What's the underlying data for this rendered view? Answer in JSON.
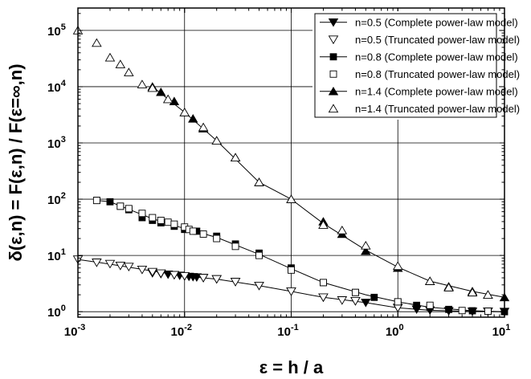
{
  "chart_data": {
    "type": "line",
    "x_scale": "log",
    "y_scale": "log",
    "xlim": [
      0.001,
      10
    ],
    "ylim": [
      0.8,
      250000
    ],
    "grid": true,
    "legend_position": "top-right",
    "xlabel": "ε = h / a",
    "ylabel": "δ(ε,n) = F(ε,n) / F(ε=∞,n)",
    "x_ticks": [
      {
        "base": "10",
        "exp": "-3",
        "value": 0.001
      },
      {
        "base": "10",
        "exp": "-2",
        "value": 0.01
      },
      {
        "base": "10",
        "exp": "-1",
        "value": 0.1
      },
      {
        "base": "10",
        "exp": "0",
        "value": 1
      },
      {
        "base": "10",
        "exp": "1",
        "value": 10
      }
    ],
    "y_ticks": [
      {
        "base": "10",
        "exp": "0",
        "value": 1
      },
      {
        "base": "10",
        "exp": "1",
        "value": 10
      },
      {
        "base": "10",
        "exp": "2",
        "value": 100
      },
      {
        "base": "10",
        "exp": "3",
        "value": 1000
      },
      {
        "base": "10",
        "exp": "4",
        "value": 10000
      },
      {
        "base": "10",
        "exp": "5",
        "value": 100000
      }
    ],
    "series": [
      {
        "name": "n=0.5 (Complete power-law model)",
        "marker": "triangle-down-filled",
        "x": [
          0.005,
          0.006,
          0.007,
          0.008,
          0.009,
          0.01,
          0.011,
          0.012,
          0.013,
          0.015,
          0.02,
          0.03,
          0.05,
          0.1,
          0.2,
          0.4,
          0.5,
          1,
          1.5,
          2,
          3,
          5,
          7,
          10
        ],
        "y": [
          4.85,
          4.7,
          4.6,
          4.5,
          4.4,
          4.3,
          4.2,
          4.15,
          4.1,
          4.0,
          3.8,
          3.4,
          2.9,
          2.3,
          1.8,
          1.55,
          1.45,
          1.17,
          1.1,
          1.06,
          1.03,
          1.01,
          1.01,
          1.0
        ]
      },
      {
        "name": "n=0.5 (Truncated power-law model)",
        "marker": "triangle-down-open",
        "x": [
          0.001,
          0.0015,
          0.002,
          0.0025,
          0.003,
          0.004,
          0.005,
          0.006,
          0.008,
          0.01,
          0.015,
          0.02,
          0.03,
          0.05,
          0.1,
          0.2,
          0.3,
          0.4,
          1,
          7
        ],
        "y": [
          8.5,
          7.5,
          7.1,
          6.6,
          6.3,
          5.6,
          5.1,
          4.8,
          4.5,
          4.3,
          4.0,
          3.8,
          3.4,
          2.9,
          2.3,
          1.8,
          1.6,
          1.55,
          1.18,
          1.01
        ]
      },
      {
        "name": "n=0.8 (Complete power-law model)",
        "marker": "square-filled",
        "x": [
          0.0015,
          0.002,
          0.0025,
          0.003,
          0.004,
          0.005,
          0.006,
          0.008,
          0.01,
          0.013,
          0.02,
          0.03,
          0.05,
          0.1,
          0.2,
          0.4,
          0.6,
          1,
          1.5,
          2,
          3,
          5,
          7,
          10
        ],
        "y": [
          95,
          90,
          75,
          65,
          47,
          42,
          38,
          33,
          29,
          27,
          22,
          16,
          11,
          6,
          3.3,
          2.2,
          1.8,
          1.5,
          1.3,
          1.2,
          1.1,
          1.04,
          1.02,
          1.0
        ]
      },
      {
        "name": "n=0.8 (Truncated power-law model)",
        "marker": "square-open",
        "x": [
          0.0015,
          0.0025,
          0.003,
          0.004,
          0.005,
          0.006,
          0.007,
          0.008,
          0.01,
          0.011,
          0.012,
          0.015,
          0.02,
          0.03,
          0.05,
          0.1,
          0.2,
          0.4,
          1,
          2,
          4,
          7
        ],
        "y": [
          95,
          75,
          68,
          56,
          47,
          42,
          39,
          36,
          32,
          29,
          27,
          24,
          20,
          14.5,
          10,
          5.5,
          3.3,
          2.2,
          1.5,
          1.3,
          1.05,
          1.02
        ]
      },
      {
        "name": "n=1.4 (Complete power-law model)",
        "marker": "triangle-up-filled",
        "x": [
          0.005,
          0.006,
          0.008,
          0.01,
          0.012,
          0.015,
          0.02,
          0.03,
          0.05,
          0.1,
          0.2,
          0.3,
          0.5,
          1,
          2,
          3,
          5,
          7,
          10
        ],
        "y": [
          10000,
          8000,
          5500,
          3500,
          2700,
          1800,
          1100,
          550,
          200,
          100,
          40,
          24,
          12,
          6,
          3.5,
          2.8,
          2.3,
          2.0,
          1.8
        ]
      },
      {
        "name": "n=1.4 (Truncated power-law model)",
        "marker": "triangle-up-open",
        "x": [
          0.001,
          0.0015,
          0.002,
          0.0025,
          0.003,
          0.004,
          0.005,
          0.007,
          0.01,
          0.015,
          0.02,
          0.03,
          0.05,
          0.1,
          0.2,
          0.3,
          0.5,
          1,
          2,
          3,
          5,
          7
        ],
        "y": [
          100000,
          60000,
          33000,
          25000,
          18000,
          11000,
          9500,
          6000,
          3500,
          1900,
          1100,
          550,
          200,
          100,
          35,
          28,
          15,
          6.5,
          3.5,
          2.7,
          2.2,
          2.0
        ]
      }
    ],
    "fit_curves": {
      "n05": {
        "x": [
          0.001,
          0.002,
          0.005,
          0.01,
          0.02,
          0.05,
          0.1,
          0.2,
          0.5,
          1,
          2,
          5,
          10
        ],
        "y": [
          8.5,
          7.0,
          5.3,
          4.3,
          3.8,
          2.9,
          2.3,
          1.8,
          1.45,
          1.17,
          1.06,
          1.01,
          1.0
        ]
      },
      "n08": {
        "x": [
          0.0015,
          0.002,
          0.003,
          0.005,
          0.01,
          0.02,
          0.05,
          0.1,
          0.2,
          0.5,
          1,
          2,
          5,
          10
        ],
        "y": [
          95,
          90,
          66,
          45,
          30,
          21,
          10.5,
          5.8,
          3.3,
          2.0,
          1.5,
          1.2,
          1.04,
          1.0
        ]
      },
      "n14": {
        "x": [
          0.005,
          0.01,
          0.02,
          0.05,
          0.1,
          0.2,
          0.5,
          1,
          2,
          5,
          10
        ],
        "y": [
          10000,
          3500,
          1100,
          200,
          100,
          37,
          12.5,
          6.2,
          3.5,
          2.3,
          1.8
        ]
      }
    }
  }
}
